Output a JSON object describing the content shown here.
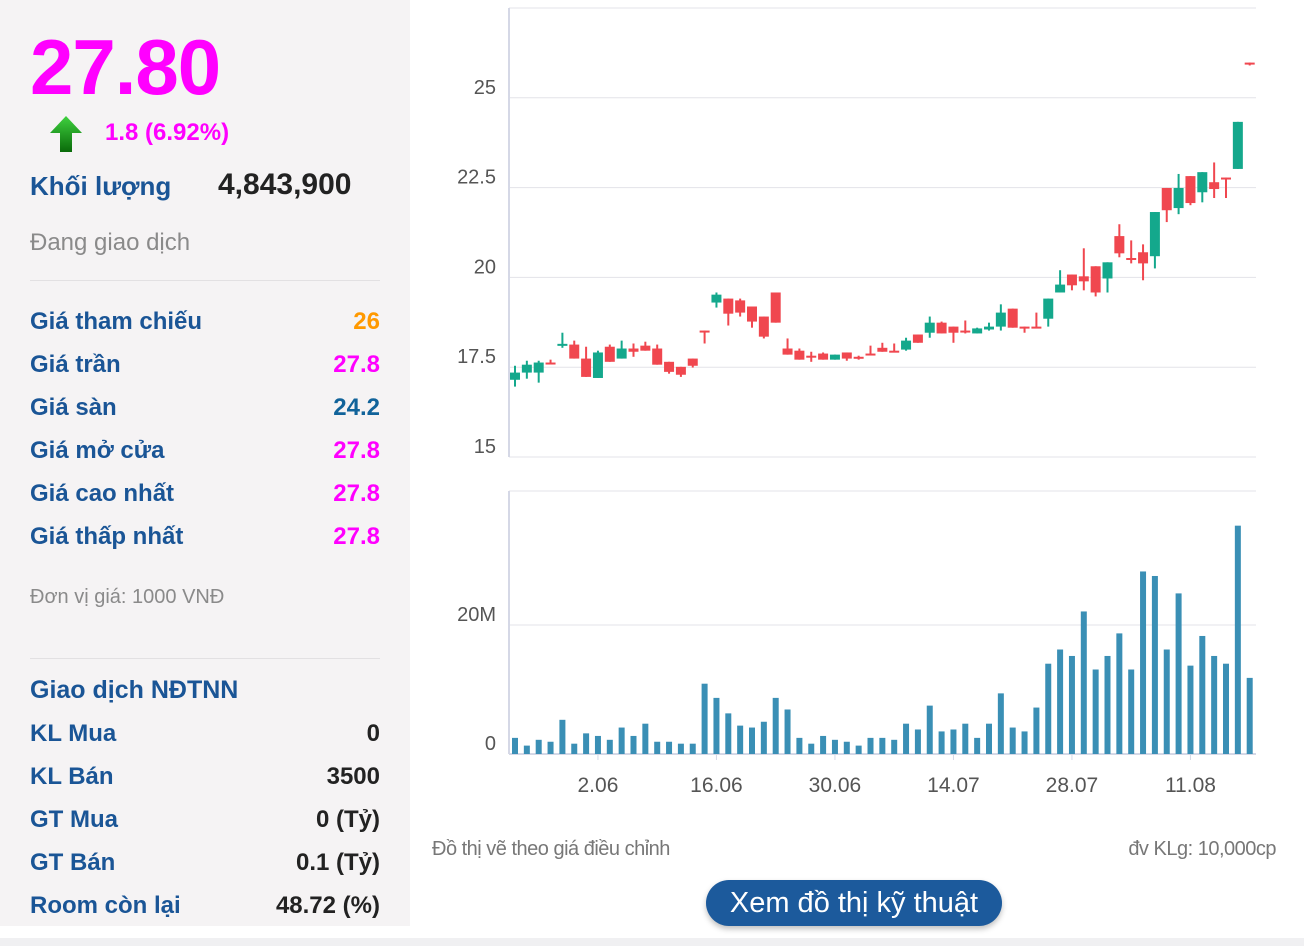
{
  "quote": {
    "price": "27.80",
    "change": "1.8 (6.92%)",
    "volume_label": "Khối lượng",
    "volume_value": "4,843,900",
    "status": "Đang giao dịch"
  },
  "colors": {
    "magenta": "#ff00ff",
    "orange": "#ff9900",
    "blue": "#1a5596",
    "floor": "#11639a",
    "up": "#14a88c",
    "down": "#f0474f",
    "volume": "#3a8fb5"
  },
  "prices": [
    {
      "label": "Giá tham chiếu",
      "value": "26",
      "color": "#ff9900"
    },
    {
      "label": "Giá trần",
      "value": "27.8",
      "color": "#ff00ff"
    },
    {
      "label": "Giá sàn",
      "value": "24.2",
      "color": "#11639a"
    },
    {
      "label": "Giá mở cửa",
      "value": "27.8",
      "color": "#ff00ff"
    },
    {
      "label": "Giá cao nhất",
      "value": "27.8",
      "color": "#ff00ff"
    },
    {
      "label": "Giá thấp nhất",
      "value": "27.8",
      "color": "#ff00ff"
    }
  ],
  "unit_note": "Đơn vị giá: 1000 VNĐ",
  "foreign": {
    "title": "Giao dịch NĐTNN",
    "rows": [
      {
        "label": "KL Mua",
        "value": "0"
      },
      {
        "label": "KL Bán",
        "value": "3500"
      },
      {
        "label": "GT Mua",
        "value": "0 (Tỷ)"
      },
      {
        "label": "GT Bán",
        "value": "0.1 (Tỷ)"
      },
      {
        "label": "Room còn lại",
        "value": "48.72 (%)"
      }
    ]
  },
  "chart_notes": {
    "adjusted": "Đồ thị vẽ theo giá điều chỉnh",
    "volume_unit": "đv KLg: 10,000cp",
    "button": "Xem đồ thị kỹ thuật"
  },
  "chart_data": [
    {
      "type": "candlestick",
      "ylim": [
        15,
        27.5
      ],
      "yticks": [
        15,
        17.5,
        20,
        22.5,
        25
      ],
      "ytick_labels": [
        "15",
        "17.5",
        "20",
        "22.5",
        "25"
      ],
      "xtick_labels": [
        "2.06",
        "16.06",
        "30.06",
        "14.07",
        "28.07",
        "11.08"
      ],
      "xtick_index": [
        7,
        17,
        27,
        37,
        47,
        57
      ],
      "grid": true,
      "ohlc": [
        [
          17.15,
          17.54,
          16.96,
          17.35
        ],
        [
          17.35,
          17.68,
          17.18,
          17.57
        ],
        [
          17.35,
          17.68,
          17.07,
          17.63
        ],
        [
          17.63,
          17.71,
          17.6,
          17.6
        ],
        [
          18.1,
          18.46,
          18.04,
          18.15
        ],
        [
          18.13,
          18.24,
          17.74,
          17.74
        ],
        [
          17.74,
          18.07,
          17.23,
          17.23
        ],
        [
          17.2,
          17.96,
          17.2,
          17.91
        ],
        [
          18.07,
          18.13,
          17.65,
          17.65
        ],
        [
          17.74,
          18.24,
          17.74,
          18.02
        ],
        [
          18.02,
          18.16,
          17.79,
          17.93
        ],
        [
          18.1,
          18.21,
          17.96,
          17.96
        ],
        [
          18.02,
          18.13,
          17.57,
          17.57
        ],
        [
          17.65,
          17.65,
          17.32,
          17.37
        ],
        [
          17.51,
          17.51,
          17.23,
          17.29
        ],
        [
          17.74,
          17.74,
          17.49,
          17.54
        ],
        [
          18.52,
          18.52,
          18.16,
          18.5
        ],
        [
          19.3,
          19.58,
          19.16,
          19.52
        ],
        [
          19.41,
          19.41,
          18.66,
          18.99
        ],
        [
          19.36,
          19.41,
          18.91,
          19.02
        ],
        [
          19.19,
          19.19,
          18.6,
          18.77
        ],
        [
          18.91,
          18.91,
          18.3,
          18.35
        ],
        [
          19.58,
          19.58,
          18.74,
          18.74
        ],
        [
          18.02,
          18.3,
          17.85,
          17.85
        ],
        [
          17.96,
          18.02,
          17.71,
          17.71
        ],
        [
          17.82,
          17.93,
          17.65,
          17.8
        ],
        [
          17.88,
          17.91,
          17.71,
          17.71
        ],
        [
          17.71,
          17.85,
          17.71,
          17.85
        ],
        [
          17.91,
          17.91,
          17.68,
          17.74
        ],
        [
          17.79,
          17.82,
          17.71,
          17.77
        ],
        [
          17.88,
          18.1,
          17.86,
          17.86
        ],
        [
          18.04,
          18.18,
          17.93,
          17.93
        ],
        [
          17.96,
          18.16,
          17.94,
          17.94
        ],
        [
          17.99,
          18.32,
          17.96,
          18.24
        ],
        [
          18.41,
          18.41,
          18.18,
          18.18
        ],
        [
          18.46,
          18.91,
          18.32,
          18.74
        ],
        [
          18.74,
          18.77,
          18.44,
          18.44
        ],
        [
          18.63,
          18.63,
          18.18,
          18.46
        ],
        [
          18.52,
          18.8,
          18.44,
          18.48
        ],
        [
          18.44,
          18.6,
          18.44,
          18.58
        ],
        [
          18.55,
          18.74,
          18.52,
          18.63
        ],
        [
          18.63,
          19.25,
          18.52,
          19.02
        ],
        [
          19.13,
          19.13,
          18.6,
          18.6
        ],
        [
          18.63,
          18.63,
          18.46,
          18.58
        ],
        [
          18.63,
          19.02,
          18.6,
          18.6
        ],
        [
          18.85,
          19.41,
          18.63,
          19.41
        ],
        [
          19.58,
          20.2,
          19.58,
          19.8
        ],
        [
          20.08,
          20.08,
          19.64,
          19.78
        ],
        [
          20.03,
          20.81,
          19.64,
          19.89
        ],
        [
          20.31,
          20.31,
          19.47,
          19.58
        ],
        [
          19.97,
          20.42,
          19.58,
          20.42
        ],
        [
          21.15,
          21.48,
          20.56,
          20.67
        ],
        [
          20.54,
          21.03,
          20.39,
          20.52
        ],
        [
          20.7,
          20.92,
          19.92,
          20.39
        ],
        [
          20.59,
          21.82,
          20.25,
          21.82
        ],
        [
          22.49,
          22.49,
          21.54,
          21.87
        ],
        [
          21.93,
          22.88,
          21.76,
          22.49
        ],
        [
          22.82,
          22.82,
          22.01,
          22.07
        ],
        [
          22.37,
          22.93,
          22.09,
          22.93
        ],
        [
          22.65,
          23.2,
          22.21,
          22.46
        ],
        [
          22.78,
          22.78,
          22.21,
          22.76
        ],
        [
          23.02,
          24.33,
          23.02,
          24.33
        ],
        [
          25.98,
          25.98,
          25.9,
          25.96
        ]
      ]
    },
    {
      "type": "bar",
      "ylim": [
        0,
        40
      ],
      "yticks": [
        0,
        20
      ],
      "ytick_labels": [
        "0",
        "20M"
      ],
      "grid": true,
      "values": [
        2.5,
        1.3,
        2.2,
        1.9,
        5.3,
        1.6,
        3.2,
        2.8,
        2.2,
        4.1,
        2.8,
        4.7,
        1.9,
        1.9,
        1.6,
        1.6,
        10.9,
        8.7,
        6.3,
        4.4,
        4.1,
        5.0,
        8.7,
        6.9,
        2.5,
        1.6,
        2.8,
        2.2,
        1.9,
        1.3,
        2.5,
        2.5,
        2.2,
        4.7,
        3.8,
        7.5,
        3.5,
        3.8,
        4.7,
        2.5,
        4.7,
        9.4,
        4.1,
        3.5,
        7.2,
        14.0,
        16.2,
        15.2,
        22.1,
        13.1,
        15.2,
        18.7,
        13.1,
        28.3,
        27.6,
        16.2,
        24.9,
        13.7,
        18.3,
        15.2,
        14.0,
        35.4,
        11.8
      ]
    }
  ]
}
